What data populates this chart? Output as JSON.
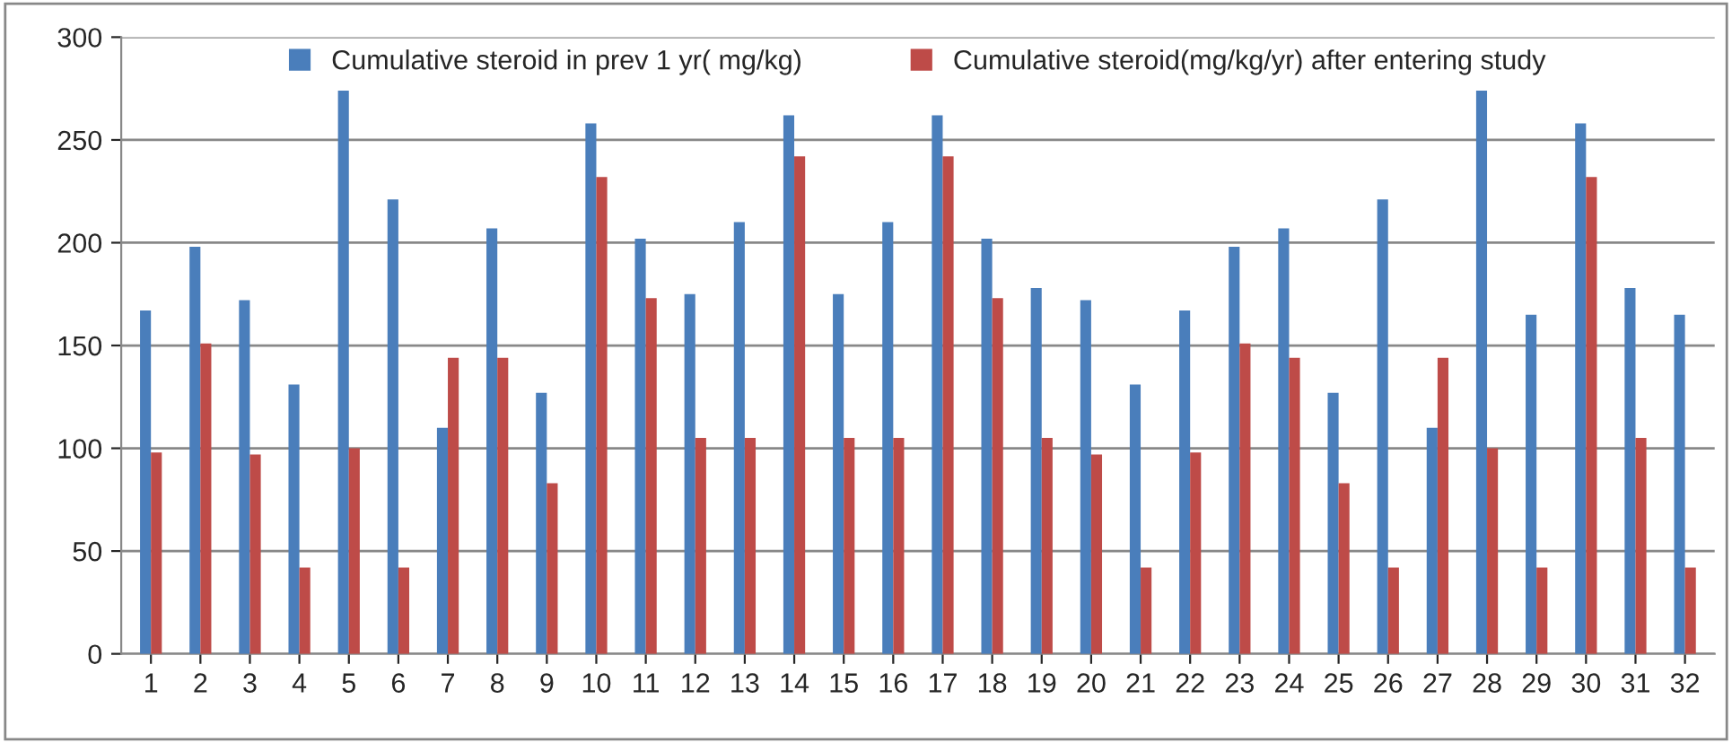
{
  "chart_data": {
    "type": "bar",
    "categories": [
      "1",
      "2",
      "3",
      "4",
      "5",
      "6",
      "7",
      "8",
      "9",
      "10",
      "11",
      "12",
      "13",
      "14",
      "15",
      "16",
      "17",
      "18",
      "19",
      "20",
      "21",
      "22",
      "23",
      "24",
      "25",
      "26",
      "27",
      "28",
      "29",
      "30",
      "31",
      "32"
    ],
    "series": [
      {
        "name": "Cumulative steroid in prev 1 yr( mg/kg)",
        "color": "#4a7ebb",
        "values": [
          167,
          198,
          172,
          131,
          274,
          221,
          110,
          207,
          127,
          258,
          202,
          175,
          210,
          262,
          175,
          210,
          262,
          202,
          178,
          172,
          131,
          167,
          198,
          207,
          127,
          221,
          110,
          274,
          165,
          258,
          178,
          165
        ]
      },
      {
        "name": "Cumulative steroid(mg/kg/yr) after entering study",
        "color": "#be4b48",
        "values": [
          98,
          151,
          97,
          42,
          100,
          42,
          144,
          144,
          83,
          232,
          173,
          105,
          105,
          242,
          105,
          105,
          242,
          173,
          105,
          97,
          42,
          98,
          151,
          144,
          83,
          42,
          144,
          100,
          42,
          232,
          105,
          42
        ]
      }
    ],
    "ylim": [
      0,
      300
    ],
    "yticks": [
      0,
      50,
      100,
      150,
      200,
      250,
      300
    ],
    "grid": "y",
    "legend": "top"
  }
}
